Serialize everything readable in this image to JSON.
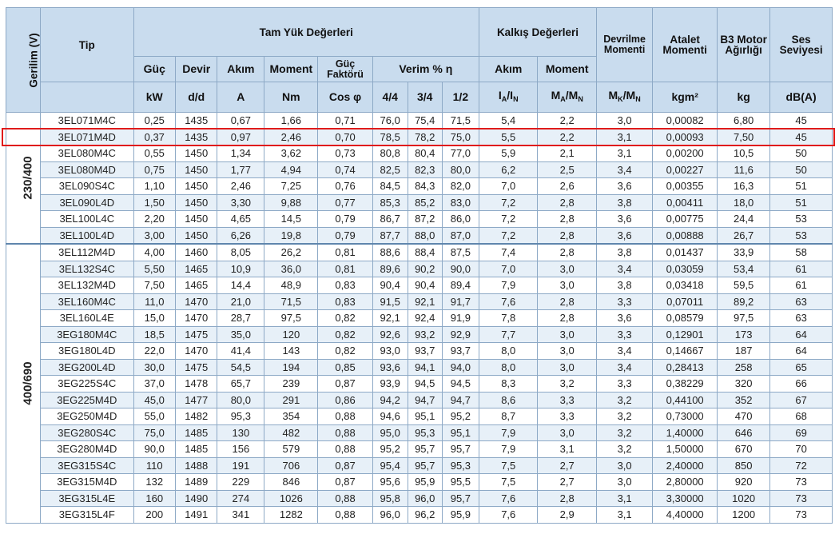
{
  "header": {
    "gerilim": "Gerilim (V)",
    "tip": "Tip",
    "full_load": "Tam Yük Değerleri",
    "kalkis": "Kalkış Değerleri",
    "devrilme": "Devrilme Momenti",
    "atalet": "Atalet Momenti",
    "b3": "B3 Motor Ağırlığı",
    "ses": "Ses Seviyesi",
    "guc": "Güç",
    "devir": "Devir",
    "akim": "Akım",
    "moment": "Moment",
    "guc_faktoru": "Güç Faktörü",
    "verim": "Verim % η",
    "k_akim": "Akım",
    "k_moment": "Moment",
    "u_kw": "kW",
    "u_dd": "d/d",
    "u_a": "A",
    "u_nm": "Nm",
    "u_cos": "Cos φ",
    "u_44": "4/4",
    "u_34": "3/4",
    "u_12": "1/2",
    "u_ia": "I",
    "u_ia_a": "A",
    "u_ia_sep": "/I",
    "u_ia_n": "N",
    "u_ma": "M",
    "u_ma_a": "A",
    "u_ma_sep": "/M",
    "u_ma_n": "N",
    "u_mk": "M",
    "u_mk_k": "K",
    "u_mk_sep": "/M",
    "u_mk_n": "N",
    "u_kgm": "kgm²",
    "u_kg": "kg",
    "u_db": "dB(A)"
  },
  "groups": [
    {
      "label": "230/400",
      "start": 0,
      "span": 8
    },
    {
      "label": "400/690",
      "start": 8,
      "span": 17
    }
  ],
  "rows": [
    [
      "3EL071M4C",
      "0,25",
      "1435",
      "0,67",
      "1,66",
      "0,71",
      "76,0",
      "75,4",
      "71,5",
      "5,4",
      "2,2",
      "3,0",
      "0,00082",
      "6,80",
      "45"
    ],
    [
      "3EL071M4D",
      "0,37",
      "1435",
      "0,97",
      "2,46",
      "0,70",
      "78,5",
      "78,2",
      "75,0",
      "5,5",
      "2,2",
      "3,1",
      "0,00093",
      "7,50",
      "45"
    ],
    [
      "3EL080M4C",
      "0,55",
      "1450",
      "1,34",
      "3,62",
      "0,73",
      "80,8",
      "80,4",
      "77,0",
      "5,9",
      "2,1",
      "3,1",
      "0,00200",
      "10,5",
      "50"
    ],
    [
      "3EL080M4D",
      "0,75",
      "1450",
      "1,77",
      "4,94",
      "0,74",
      "82,5",
      "82,3",
      "80,0",
      "6,2",
      "2,5",
      "3,4",
      "0,00227",
      "11,6",
      "50"
    ],
    [
      "3EL090S4C",
      "1,10",
      "1450",
      "2,46",
      "7,25",
      "0,76",
      "84,5",
      "84,3",
      "82,0",
      "7,0",
      "2,6",
      "3,6",
      "0,00355",
      "16,3",
      "51"
    ],
    [
      "3EL090L4D",
      "1,50",
      "1450",
      "3,30",
      "9,88",
      "0,77",
      "85,3",
      "85,2",
      "83,0",
      "7,2",
      "2,8",
      "3,8",
      "0,00411",
      "18,0",
      "51"
    ],
    [
      "3EL100L4C",
      "2,20",
      "1450",
      "4,65",
      "14,5",
      "0,79",
      "86,7",
      "87,2",
      "86,0",
      "7,2",
      "2,8",
      "3,6",
      "0,00775",
      "24,4",
      "53"
    ],
    [
      "3EL100L4D",
      "3,00",
      "1450",
      "6,26",
      "19,8",
      "0,79",
      "87,7",
      "88,0",
      "87,0",
      "7,2",
      "2,8",
      "3,6",
      "0,00888",
      "26,7",
      "53"
    ],
    [
      "3EL112M4D",
      "4,00",
      "1460",
      "8,05",
      "26,2",
      "0,81",
      "88,6",
      "88,4",
      "87,5",
      "7,4",
      "2,8",
      "3,8",
      "0,01437",
      "33,9",
      "58"
    ],
    [
      "3EL132S4C",
      "5,50",
      "1465",
      "10,9",
      "36,0",
      "0,81",
      "89,6",
      "90,2",
      "90,0",
      "7,0",
      "3,0",
      "3,4",
      "0,03059",
      "53,4",
      "61"
    ],
    [
      "3EL132M4D",
      "7,50",
      "1465",
      "14,4",
      "48,9",
      "0,83",
      "90,4",
      "90,4",
      "89,4",
      "7,9",
      "3,0",
      "3,8",
      "0,03418",
      "59,5",
      "61"
    ],
    [
      "3EL160M4C",
      "11,0",
      "1470",
      "21,0",
      "71,5",
      "0,83",
      "91,5",
      "92,1",
      "91,7",
      "7,6",
      "2,8",
      "3,3",
      "0,07011",
      "89,2",
      "63"
    ],
    [
      "3EL160L4E",
      "15,0",
      "1470",
      "28,7",
      "97,5",
      "0,82",
      "92,1",
      "92,4",
      "91,9",
      "7,8",
      "2,8",
      "3,6",
      "0,08579",
      "97,5",
      "63"
    ],
    [
      "3EG180M4C",
      "18,5",
      "1475",
      "35,0",
      "120",
      "0,82",
      "92,6",
      "93,2",
      "92,9",
      "7,7",
      "3,0",
      "3,3",
      "0,12901",
      "173",
      "64"
    ],
    [
      "3EG180L4D",
      "22,0",
      "1470",
      "41,4",
      "143",
      "0,82",
      "93,0",
      "93,7",
      "93,7",
      "8,0",
      "3,0",
      "3,4",
      "0,14667",
      "187",
      "64"
    ],
    [
      "3EG200L4D",
      "30,0",
      "1475",
      "54,5",
      "194",
      "0,85",
      "93,6",
      "94,1",
      "94,0",
      "8,0",
      "3,0",
      "3,4",
      "0,28413",
      "258",
      "65"
    ],
    [
      "3EG225S4C",
      "37,0",
      "1478",
      "65,7",
      "239",
      "0,87",
      "93,9",
      "94,5",
      "94,5",
      "8,3",
      "3,2",
      "3,3",
      "0,38229",
      "320",
      "66"
    ],
    [
      "3EG225M4D",
      "45,0",
      "1477",
      "80,0",
      "291",
      "0,86",
      "94,2",
      "94,7",
      "94,7",
      "8,6",
      "3,3",
      "3,2",
      "0,44100",
      "352",
      "67"
    ],
    [
      "3EG250M4D",
      "55,0",
      "1482",
      "95,3",
      "354",
      "0,88",
      "94,6",
      "95,1",
      "95,2",
      "8,7",
      "3,3",
      "3,2",
      "0,73000",
      "470",
      "68"
    ],
    [
      "3EG280S4C",
      "75,0",
      "1485",
      "130",
      "482",
      "0,88",
      "95,0",
      "95,3",
      "95,1",
      "7,9",
      "3,0",
      "3,2",
      "1,40000",
      "646",
      "69"
    ],
    [
      "3EG280M4D",
      "90,0",
      "1485",
      "156",
      "579",
      "0,88",
      "95,2",
      "95,7",
      "95,7",
      "7,9",
      "3,1",
      "3,2",
      "1,50000",
      "670",
      "70"
    ],
    [
      "3EG315S4C",
      "110",
      "1488",
      "191",
      "706",
      "0,87",
      "95,4",
      "95,7",
      "95,3",
      "7,5",
      "2,7",
      "3,0",
      "2,40000",
      "850",
      "72"
    ],
    [
      "3EG315M4D",
      "132",
      "1489",
      "229",
      "846",
      "0,87",
      "95,6",
      "95,9",
      "95,5",
      "7,5",
      "2,7",
      "3,0",
      "2,80000",
      "920",
      "73"
    ],
    [
      "3EG315L4E",
      "160",
      "1490",
      "274",
      "1026",
      "0,88",
      "95,8",
      "96,0",
      "95,7",
      "7,6",
      "2,8",
      "3,1",
      "3,30000",
      "1020",
      "73"
    ],
    [
      "3EG315L4F",
      "200",
      "1491",
      "341",
      "1282",
      "0,88",
      "96,0",
      "96,2",
      "95,9",
      "7,6",
      "2,9",
      "3,1",
      "4,40000",
      "1200",
      "73"
    ]
  ],
  "highlighted_row": 1,
  "highlight_color": "#e01b1b",
  "header_bg": "#c9dcee",
  "stripe_bg": "#e7f0f8",
  "chart_data": {
    "type": "table",
    "columns": [
      "Tip",
      "Güç kW",
      "Devir d/d",
      "Akım A",
      "Moment Nm",
      "Güç Faktörü Cos φ",
      "Verim 4/4",
      "Verim 3/4",
      "Verim 1/2",
      "Kalkış Akım IA/IN",
      "Kalkış Moment MA/MN",
      "Devrilme Momenti MK/MN",
      "Atalet Momenti kgm²",
      "B3 Motor Ağırlığı kg",
      "Ses Seviyesi dB(A)"
    ],
    "voltage_groups": [
      "230/400",
      "400/690"
    ]
  }
}
